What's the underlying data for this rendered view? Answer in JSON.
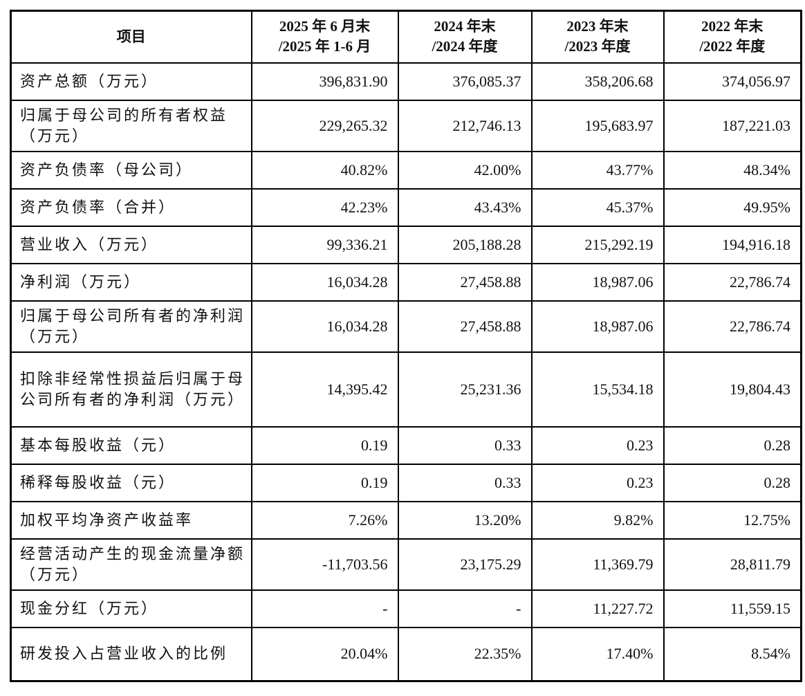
{
  "table": {
    "headers": [
      "项目",
      "2025 年 6 月末\n/2025 年 1-6 月",
      "2024 年末\n/2024 年度",
      "2023 年末\n/2023 年度",
      "2022 年末\n/2022 年度"
    ],
    "header_lines": [
      [
        "项目"
      ],
      [
        "2025 年 6 月末",
        "/2025 年 1-6 月"
      ],
      [
        "2024 年末",
        "/2024 年度"
      ],
      [
        "2023 年末",
        "/2023 年度"
      ],
      [
        "2022 年末",
        "/2022 年度"
      ]
    ],
    "rows": [
      {
        "label": "资产总额（万元）",
        "values": [
          "396,831.90",
          "376,085.37",
          "358,206.68",
          "374,056.97"
        ]
      },
      {
        "label": "归属于母公司的所有者权益（万元）",
        "values": [
          "229,265.32",
          "212,746.13",
          "195,683.97",
          "187,221.03"
        ]
      },
      {
        "label": "资产负债率（母公司）",
        "values": [
          "40.82%",
          "42.00%",
          "43.77%",
          "48.34%"
        ]
      },
      {
        "label": "资产负债率（合并）",
        "values": [
          "42.23%",
          "43.43%",
          "45.37%",
          "49.95%"
        ]
      },
      {
        "label": "营业收入（万元）",
        "values": [
          "99,336.21",
          "205,188.28",
          "215,292.19",
          "194,916.18"
        ]
      },
      {
        "label": "净利润（万元）",
        "values": [
          "16,034.28",
          "27,458.88",
          "18,987.06",
          "22,786.74"
        ]
      },
      {
        "label": "归属于母公司所有者的净利润（万元）",
        "values": [
          "16,034.28",
          "27,458.88",
          "18,987.06",
          "22,786.74"
        ]
      },
      {
        "label": "扣除非经常性损益后归属于母公司所有者的净利润（万元）",
        "values": [
          "14,395.42",
          "25,231.36",
          "15,534.18",
          "19,804.43"
        ]
      },
      {
        "label": "基本每股收益（元）",
        "values": [
          "0.19",
          "0.33",
          "0.23",
          "0.28"
        ]
      },
      {
        "label": "稀释每股收益（元）",
        "values": [
          "0.19",
          "0.33",
          "0.23",
          "0.28"
        ]
      },
      {
        "label": "加权平均净资产收益率",
        "values": [
          "7.26%",
          "13.20%",
          "9.82%",
          "12.75%"
        ]
      },
      {
        "label": "经营活动产生的现金流量净额（万元）",
        "values": [
          "-11,703.56",
          "23,175.29",
          "11,369.79",
          "28,811.79"
        ]
      },
      {
        "label": "现金分红（万元）",
        "values": [
          "-",
          "-",
          "11,227.72",
          "11,559.15"
        ]
      },
      {
        "label": "研发投入占营业收入的比例",
        "values": [
          "20.04%",
          "22.35%",
          "17.40%",
          "8.54%"
        ]
      }
    ]
  }
}
